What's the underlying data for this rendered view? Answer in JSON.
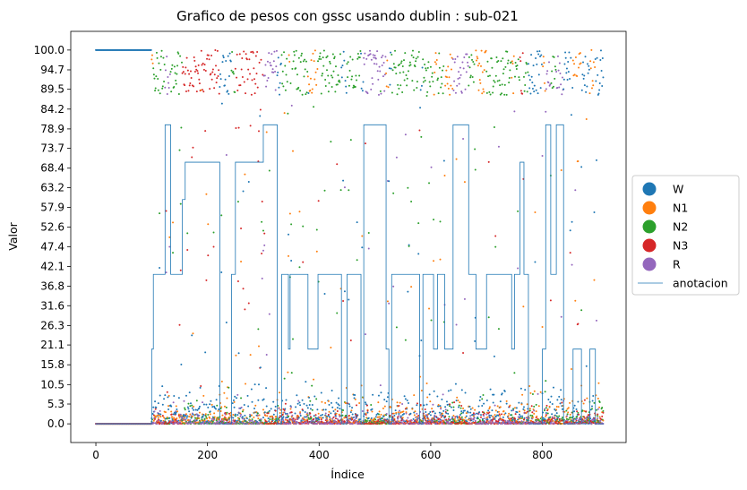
{
  "chart_data": {
    "type": "scatter",
    "title": "Grafico de pesos con gssc usando dublin :  sub-021",
    "xlabel": "Índice",
    "ylabel": "Valor",
    "xlim": [
      -45,
      950
    ],
    "ylim": [
      -5,
      105
    ],
    "x_ticks": [
      0,
      200,
      400,
      600,
      800
    ],
    "y_ticks": [
      0.0,
      5.3,
      10.5,
      15.8,
      21.1,
      26.3,
      31.6,
      36.8,
      42.1,
      47.4,
      52.6,
      57.9,
      63.2,
      68.4,
      73.7,
      78.9,
      84.2,
      89.5,
      94.7,
      100.0
    ],
    "n_points": 910,
    "grid": false,
    "legend_placement": "center-right-outside",
    "series": [
      {
        "name": "W",
        "color": "#1f77b4"
      },
      {
        "name": "N1",
        "color": "#ff7f0e"
      },
      {
        "name": "N2",
        "color": "#2ca02c"
      },
      {
        "name": "N3",
        "color": "#d62728"
      },
      {
        "name": "R",
        "color": "#9467bd"
      }
    ],
    "annotation": {
      "name": "anotacion",
      "color": "#1f77b4",
      "segments": [
        [
          0,
          100,
          0
        ],
        [
          100,
          103,
          20
        ],
        [
          103,
          115,
          40
        ],
        [
          115,
          124,
          40
        ],
        [
          124,
          134,
          80
        ],
        [
          134,
          155,
          40
        ],
        [
          155,
          160,
          60
        ],
        [
          160,
          222,
          70
        ],
        [
          222,
          243,
          0
        ],
        [
          243,
          250,
          40
        ],
        [
          250,
          258,
          70
        ],
        [
          258,
          300,
          70
        ],
        [
          300,
          325,
          80
        ],
        [
          325,
          333,
          0
        ],
        [
          333,
          345,
          40
        ],
        [
          345,
          348,
          20
        ],
        [
          348,
          380,
          40
        ],
        [
          380,
          398,
          20
        ],
        [
          398,
          440,
          40
        ],
        [
          440,
          450,
          0
        ],
        [
          450,
          475,
          40
        ],
        [
          475,
          480,
          0
        ],
        [
          480,
          520,
          80
        ],
        [
          520,
          525,
          20
        ],
        [
          525,
          530,
          0
        ],
        [
          530,
          580,
          40
        ],
        [
          580,
          586,
          0
        ],
        [
          586,
          605,
          40
        ],
        [
          605,
          612,
          20
        ],
        [
          612,
          625,
          40
        ],
        [
          625,
          640,
          20
        ],
        [
          640,
          668,
          80
        ],
        [
          668,
          681,
          40
        ],
        [
          681,
          700,
          20
        ],
        [
          700,
          745,
          40
        ],
        [
          745,
          750,
          20
        ],
        [
          750,
          760,
          40
        ],
        [
          760,
          767,
          70
        ],
        [
          767,
          775,
          40
        ],
        [
          775,
          800,
          0
        ],
        [
          800,
          806,
          20
        ],
        [
          806,
          815,
          80
        ],
        [
          815,
          825,
          40
        ],
        [
          825,
          838,
          80
        ],
        [
          838,
          855,
          0
        ],
        [
          855,
          870,
          20
        ],
        [
          870,
          885,
          0
        ],
        [
          885,
          895,
          20
        ],
        [
          895,
          910,
          0
        ]
      ]
    }
  }
}
